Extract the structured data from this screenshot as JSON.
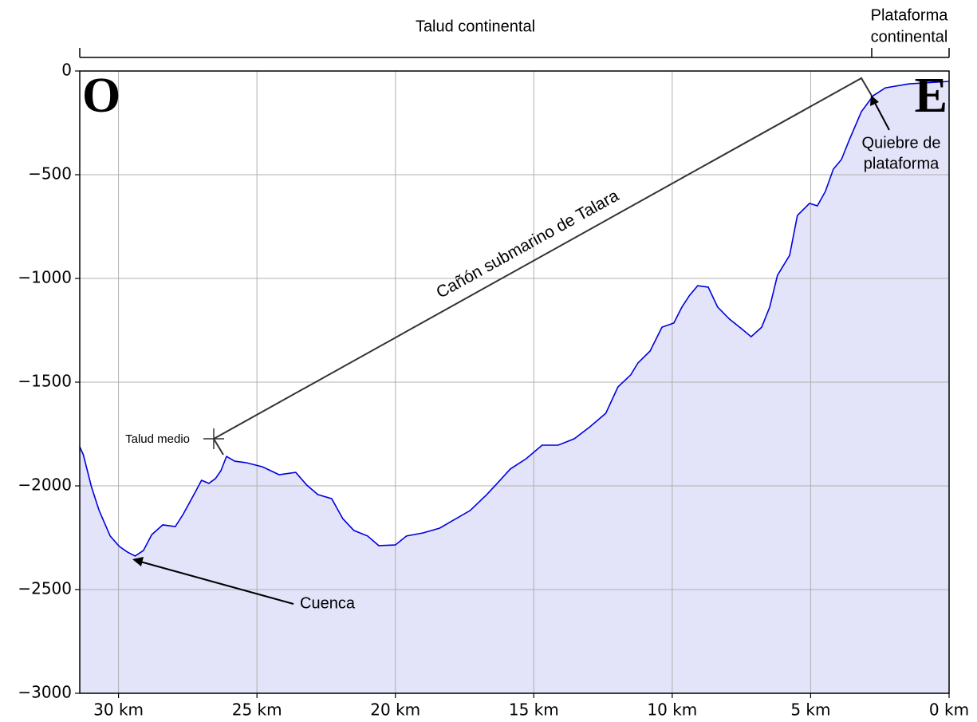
{
  "chart_data": {
    "type": "area",
    "top_labels": [
      "Talud continental",
      [
        "Plataforma",
        "continental"
      ]
    ],
    "corner_labels": [
      "O",
      "E"
    ],
    "annotations": {
      "canyon": "Cañón submarino de Talara",
      "shelf_break": [
        "Quiebre de",
        "plataforma"
      ],
      "basin": "Cuenca",
      "mid_slope": "Talud medio"
    },
    "x": [
      31.4,
      31.27,
      30.98,
      30.7,
      30.3,
      29.97,
      29.68,
      29.4,
      29.1,
      28.8,
      28.4,
      27.95,
      27.67,
      27.2,
      27.0,
      26.74,
      26.5,
      26.3,
      26.1,
      25.8,
      25.4,
      24.8,
      24.2,
      23.6,
      23.2,
      22.8,
      22.3,
      21.9,
      21.5,
      21.0,
      20.6,
      20.0,
      19.6,
      19.0,
      18.4,
      17.9,
      17.3,
      16.7,
      16.3,
      15.85,
      15.27,
      14.7,
      14.12,
      13.54,
      12.97,
      12.4,
      11.96,
      11.5,
      11.24,
      10.8,
      10.37,
      9.94,
      9.65,
      9.37,
      9.08,
      8.7,
      8.36,
      7.93,
      7.5,
      7.15,
      6.77,
      6.48,
      6.2,
      5.76,
      5.48,
      5.04,
      4.76,
      4.47,
      4.18,
      3.89,
      3.6,
      3.17,
      2.74,
      2.3,
      1.44,
      0
    ],
    "values": [
      -1812,
      -1850,
      -2004,
      -2119,
      -2242,
      -2292,
      -2319,
      -2338,
      -2312,
      -2235,
      -2188,
      -2196,
      -2138,
      -2023,
      -1973,
      -1988,
      -1965,
      -1927,
      -1858,
      -1881,
      -1888,
      -1908,
      -1946,
      -1935,
      -1996,
      -2042,
      -2062,
      -2158,
      -2215,
      -2242,
      -2288,
      -2285,
      -2242,
      -2227,
      -2204,
      -2165,
      -2119,
      -2042,
      -1985,
      -1919,
      -1869,
      -1804,
      -1804,
      -1773,
      -1715,
      -1650,
      -1523,
      -1465,
      -1408,
      -1350,
      -1235,
      -1215,
      -1138,
      -1081,
      -1035,
      -1042,
      -1138,
      -1196,
      -1242,
      -1281,
      -1235,
      -1138,
      -985,
      -888,
      -696,
      -638,
      -650,
      -581,
      -473,
      -427,
      -331,
      -196,
      -119,
      -81,
      -62,
      -50
    ],
    "color": "#0000dd",
    "fill": "#e3e3f9",
    "xlim": [
      31.4,
      0
    ],
    "ylim": [
      -3000,
      0
    ],
    "xticks": [
      {
        "value": 30,
        "label": "30 km"
      },
      {
        "value": 25,
        "label": "25 km"
      },
      {
        "value": 20,
        "label": "20 km"
      },
      {
        "value": 15,
        "label": "15 km"
      },
      {
        "value": 10,
        "label": "10 km"
      },
      {
        "value": 5,
        "label": "5 km"
      },
      {
        "value": 0,
        "label": "0 km"
      }
    ],
    "yticks": [
      0,
      {
        "value": -500,
        "label": "−500"
      },
      {
        "value": -1000,
        "label": "−1000"
      },
      {
        "value": -1500,
        "label": "−1500"
      },
      {
        "value": -2000,
        "label": "−2000"
      },
      {
        "value": -2500,
        "label": "−2500"
      },
      {
        "value": -3000,
        "label": "−3000"
      }
    ],
    "grid": true
  }
}
